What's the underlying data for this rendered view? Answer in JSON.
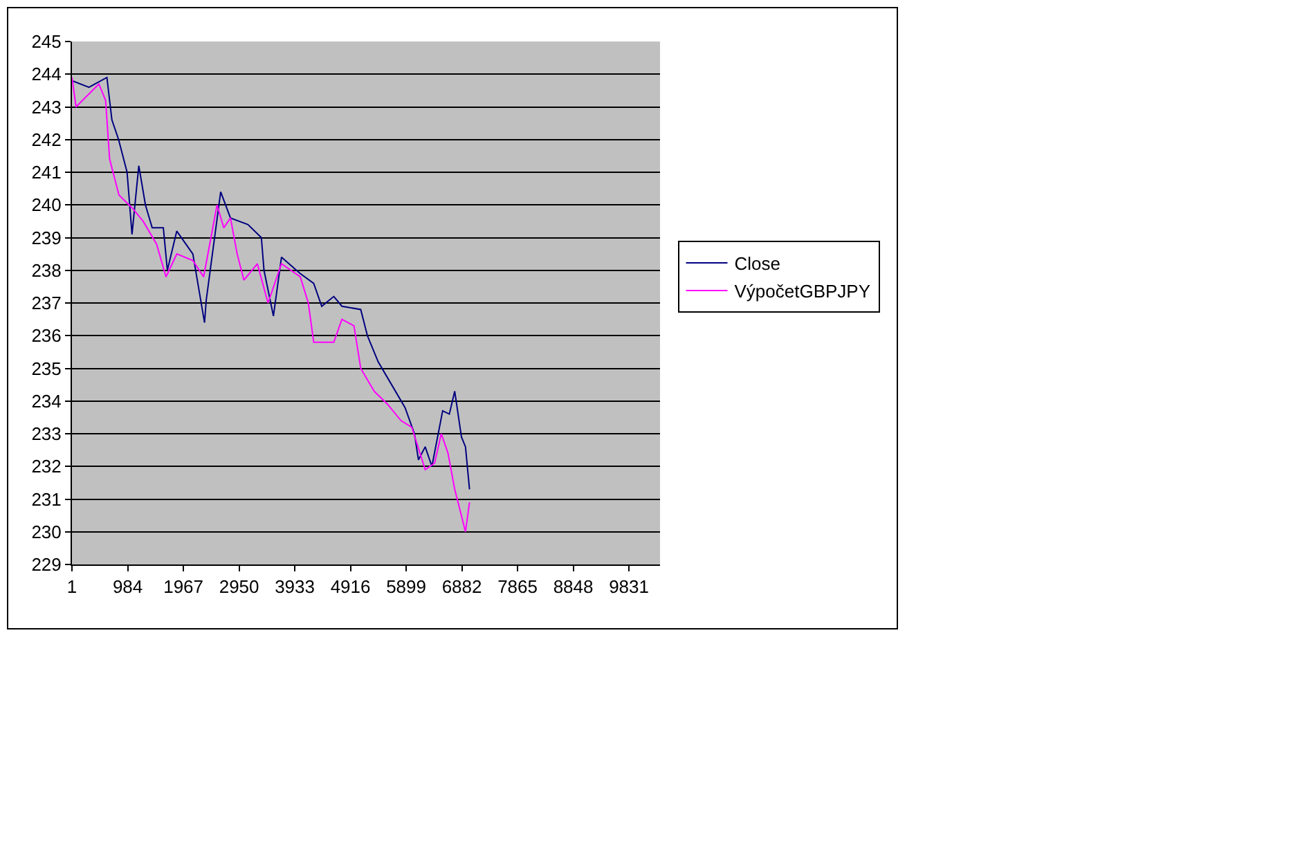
{
  "chart_data": {
    "type": "line",
    "xlim": [
      0,
      10380
    ],
    "xticks": [
      1,
      984,
      1967,
      2950,
      3933,
      4916,
      5899,
      6882,
      7865,
      8848,
      9831
    ],
    "ylim": [
      229,
      245
    ],
    "yticks": [
      229,
      230,
      231,
      232,
      233,
      234,
      235,
      236,
      237,
      238,
      239,
      240,
      241,
      242,
      243,
      244,
      245
    ],
    "grid": "y",
    "legend": "right",
    "marker": "none",
    "line_style": "solid",
    "series": [
      {
        "name": "Close",
        "color": "#000080",
        "x": [
          1,
          300,
          617,
          705,
          823,
          973,
          1060,
          1180,
          1297,
          1416,
          1613,
          1684,
          1850,
          2134,
          2340,
          2371,
          2625,
          2798,
          3106,
          3343,
          3390,
          3556,
          3698,
          4030,
          4267,
          4409,
          4622,
          4765,
          5097,
          5215,
          5405,
          5642,
          5879,
          6045,
          6116,
          6235,
          6353,
          6543,
          6661,
          6756,
          6875,
          6946,
          7017
        ],
        "values": [
          243.8,
          243.6,
          243.9,
          242.6,
          242.0,
          241.0,
          239.1,
          241.2,
          240.0,
          239.3,
          239.3,
          238.0,
          239.2,
          238.5,
          236.4,
          237.1,
          240.4,
          239.6,
          239.4,
          239.0,
          238.0,
          236.6,
          238.4,
          237.9,
          237.6,
          236.9,
          237.2,
          236.9,
          236.8,
          236.0,
          235.2,
          234.5,
          233.8,
          233.0,
          232.2,
          232.6,
          232.0,
          233.7,
          233.6,
          234.3,
          232.9,
          232.6,
          231.3
        ]
      },
      {
        "name": "VýpočetGBPJPY",
        "color": "#ff00ff",
        "x": [
          1,
          72,
          475,
          594,
          665,
          830,
          1067,
          1257,
          1494,
          1660,
          1850,
          2134,
          2324,
          2561,
          2679,
          2798,
          2916,
          3035,
          3272,
          3461,
          3698,
          4030,
          4172,
          4267,
          4622,
          4765,
          4978,
          5097,
          5334,
          5571,
          5808,
          5998,
          6235,
          6401,
          6519,
          6638,
          6756,
          6946,
          7017
        ],
        "values": [
          243.9,
          243.0,
          243.7,
          243.2,
          241.4,
          240.3,
          239.9,
          239.5,
          238.8,
          237.8,
          238.5,
          238.3,
          237.8,
          240.0,
          239.3,
          239.6,
          238.5,
          237.7,
          238.2,
          237.0,
          238.2,
          237.8,
          237.0,
          235.8,
          235.8,
          236.5,
          236.3,
          235.0,
          234.3,
          233.9,
          233.4,
          233.2,
          231.9,
          232.1,
          233.0,
          232.4,
          231.3,
          230.0,
          230.9
        ]
      }
    ]
  }
}
